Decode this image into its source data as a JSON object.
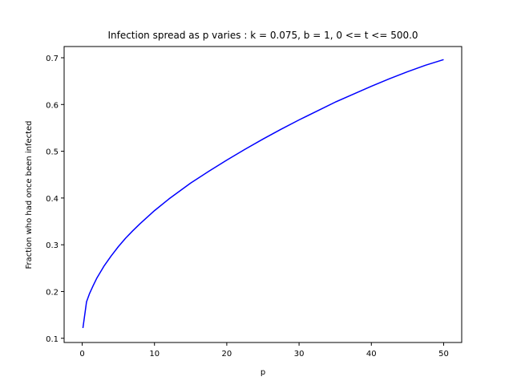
{
  "chart_data": {
    "type": "line",
    "title": "Infection spread as p varies : k = 0.075, b = 1, 0 <= t <= 500.0",
    "xlabel": "p",
    "ylabel": "Fraction who had once been infected",
    "xlim": [
      -2.5,
      52.5
    ],
    "ylim": [
      0.091,
      0.724
    ],
    "xticks": [
      0,
      10,
      20,
      30,
      40,
      50
    ],
    "yticks": [
      0.1,
      0.2,
      0.3,
      0.4,
      0.5,
      0.6,
      0.7
    ],
    "grid": false,
    "series": [
      {
        "color": "#0000ff",
        "x": [
          0.1,
          0.6,
          1,
          1.5,
          2,
          3,
          4,
          5,
          6,
          7,
          8,
          10,
          12,
          15,
          17.5,
          20,
          22.5,
          25,
          27.5,
          30,
          32.5,
          35,
          37.5,
          40,
          42.5,
          45,
          47.5,
          50
        ],
        "y": [
          0.122,
          0.178,
          0.195,
          0.212,
          0.228,
          0.254,
          0.276,
          0.296,
          0.314,
          0.33,
          0.345,
          0.373,
          0.398,
          0.432,
          0.457,
          0.481,
          0.504,
          0.526,
          0.547,
          0.567,
          0.586,
          0.605,
          0.622,
          0.639,
          0.655,
          0.67,
          0.684,
          0.696
        ]
      }
    ]
  }
}
